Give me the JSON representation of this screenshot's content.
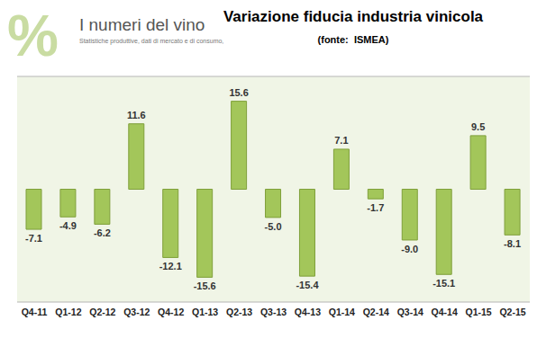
{
  "chart_data": {
    "type": "bar",
    "title": "Variazione fiducia industria vinicola",
    "subtitle": "(fonte:  ISMEA)",
    "annotations": [
      "%",
      "I numeri del vino",
      "Statistiche produttive, dati di mercato e di consumo,"
    ],
    "categories": [
      "Q4-11",
      "Q1-12",
      "Q2-12",
      "Q3-12",
      "Q4-12",
      "Q1-13",
      "Q2-13",
      "Q3-13",
      "Q4-13",
      "Q1-14",
      "Q2-14",
      "Q3-14",
      "Q4-14",
      "Q1-15",
      "Q2-15"
    ],
    "values": [
      -7.1,
      -4.9,
      -6.2,
      11.6,
      -12.1,
      -15.6,
      15.6,
      -5.0,
      -15.4,
      7.1,
      -1.7,
      -9.0,
      -15.1,
      9.5,
      -8.1
    ],
    "value_labels": [
      "-7.1",
      "-4.9",
      "-6.2",
      "11.6",
      "-12.1",
      "-15.6",
      "15.6",
      "-5.0",
      "-15.4",
      "7.1",
      "-1.7",
      "-9.0",
      "-15.1",
      "9.5",
      "-8.1"
    ],
    "color": "#a3c65a",
    "ylim": [
      -20,
      20
    ],
    "yticks": [
      -20,
      0,
      20
    ],
    "grid": true,
    "data_labels": true,
    "tick_labels": "x"
  }
}
